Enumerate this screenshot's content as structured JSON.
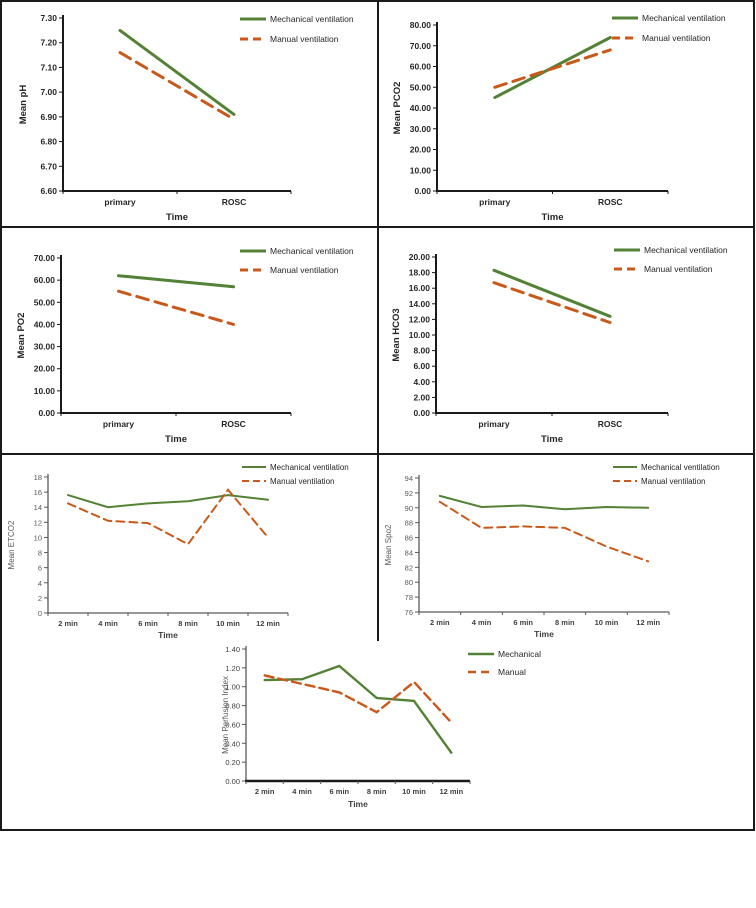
{
  "colors": {
    "mechanical": "#538135",
    "manual": "#C9591B",
    "axis_dark": "#1a1a1a",
    "axis_gray": "#595959"
  },
  "chart_data": [
    {
      "id": "mean-ph",
      "type": "line",
      "title": "",
      "ylabel": "Mean pH",
      "xlabel": "Time",
      "categories": [
        "primary",
        "ROSC"
      ],
      "ylim": [
        6.6,
        7.3
      ],
      "ytick_step": 0.1,
      "ydecimals": 2,
      "grid": false,
      "legend_position": "top-right",
      "series": [
        {
          "name": "Mechanical ventilation",
          "style": "solid",
          "color": "#538135",
          "values": [
            7.25,
            6.91
          ]
        },
        {
          "name": "Manual ventilation",
          "style": "dashed",
          "color": "#C9591B",
          "values": [
            7.16,
            6.89
          ]
        }
      ]
    },
    {
      "id": "mean-pco2",
      "type": "line",
      "title": "",
      "ylabel": "Mean PCO2",
      "xlabel": "Time",
      "categories": [
        "primary",
        "ROSC"
      ],
      "ylim": [
        0,
        80
      ],
      "ytick_step": 10,
      "ydecimals": 2,
      "grid": false,
      "legend_position": "top-right",
      "series": [
        {
          "name": "Mechanical ventilation",
          "style": "solid",
          "color": "#538135",
          "values": [
            45,
            74
          ]
        },
        {
          "name": "Manual ventilation",
          "style": "dashed",
          "color": "#C9591B",
          "values": [
            50,
            68
          ]
        }
      ]
    },
    {
      "id": "mean-po2",
      "type": "line",
      "title": "",
      "ylabel": "Mean PO2",
      "xlabel": "Time",
      "categories": [
        "primary",
        "ROSC"
      ],
      "ylim": [
        0,
        70
      ],
      "ytick_step": 10,
      "ydecimals": 2,
      "grid": false,
      "legend_position": "top-right",
      "series": [
        {
          "name": "Mechanical ventilation",
          "style": "solid",
          "color": "#538135",
          "values": [
            62,
            57
          ]
        },
        {
          "name": "Manual ventilation",
          "style": "dashed",
          "color": "#C9591B",
          "values": [
            55,
            40
          ]
        }
      ]
    },
    {
      "id": "mean-hco3",
      "type": "line",
      "title": "",
      "ylabel": "Mean HCO3",
      "xlabel": "Time",
      "categories": [
        "primary",
        "ROSC"
      ],
      "ylim": [
        0,
        20
      ],
      "ytick_step": 2,
      "ydecimals": 2,
      "grid": false,
      "legend_position": "top-right",
      "series": [
        {
          "name": "Mechanical ventilation",
          "style": "solid",
          "color": "#538135",
          "values": [
            18.3,
            12.4
          ]
        },
        {
          "name": "Manual ventilation",
          "style": "dashed",
          "color": "#C9591B",
          "values": [
            16.7,
            11.6
          ]
        }
      ]
    },
    {
      "id": "mean-etco2",
      "type": "line",
      "title": "",
      "ylabel": "Mean ETCO2",
      "xlabel": "Time",
      "categories": [
        "2 min",
        "4 min",
        "6 min",
        "8 min",
        "10 min",
        "12 min"
      ],
      "ylim": [
        0,
        18
      ],
      "ytick_step": 2,
      "ydecimals": 0,
      "grid": false,
      "legend_position": "top-right",
      "series": [
        {
          "name": "Mechanical ventilation",
          "style": "solid",
          "color": "#538135",
          "values": [
            15.6,
            14.0,
            14.5,
            14.8,
            15.6,
            15.0
          ]
        },
        {
          "name": "Manual ventilation",
          "style": "dashed",
          "color": "#C9591B",
          "values": [
            14.5,
            12.2,
            11.9,
            9.1,
            16.3,
            10.0
          ]
        }
      ]
    },
    {
      "id": "mean-spo2",
      "type": "line",
      "title": "",
      "ylabel": "Mean Spo2",
      "xlabel": "Time",
      "categories": [
        "2 min",
        "4 min",
        "6 min",
        "8 min",
        "10 min",
        "12 min"
      ],
      "ylim": [
        76,
        94
      ],
      "ytick_step": 2,
      "ydecimals": 0,
      "grid": false,
      "legend_position": "top-right",
      "series": [
        {
          "name": "Mechanical ventilation",
          "style": "solid",
          "color": "#538135",
          "values": [
            91.6,
            90.1,
            90.3,
            89.8,
            90.1,
            90.0
          ]
        },
        {
          "name": "Manual ventilation",
          "style": "dashed",
          "color": "#C9591B",
          "values": [
            90.8,
            87.3,
            87.5,
            87.3,
            84.8,
            82.8
          ]
        }
      ]
    },
    {
      "id": "mean-perfusion-index",
      "type": "line",
      "title": "",
      "ylabel": "Mean Perfusion Index",
      "xlabel": "Time",
      "categories": [
        "2 min",
        "4 min",
        "6 min",
        "8 min",
        "10 min",
        "12 min"
      ],
      "ylim": [
        0,
        1.4
      ],
      "ytick_step": 0.2,
      "ydecimals": 2,
      "grid": false,
      "legend_position": "top-right",
      "series": [
        {
          "name": "Mechanical",
          "style": "solid",
          "color": "#538135",
          "values": [
            1.07,
            1.08,
            1.22,
            0.88,
            0.85,
            0.3
          ]
        },
        {
          "name": "Manual",
          "style": "dashed",
          "color": "#C9591B",
          "values": [
            1.12,
            1.03,
            0.94,
            0.73,
            1.05,
            0.62
          ]
        }
      ]
    }
  ]
}
